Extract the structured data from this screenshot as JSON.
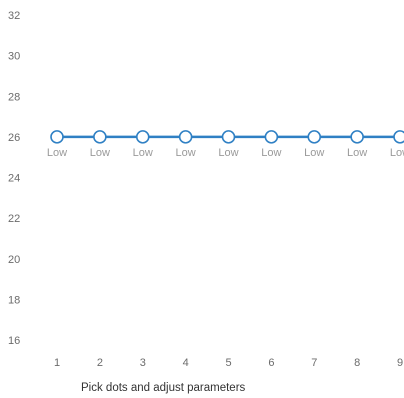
{
  "chart_data": {
    "type": "line",
    "x": [
      1,
      2,
      3,
      4,
      5,
      6,
      7,
      8,
      9
    ],
    "y": [
      26,
      26,
      26,
      26,
      26,
      26,
      26,
      26,
      26
    ],
    "point_labels": [
      "Low",
      "Low",
      "Low",
      "Low",
      "Low",
      "Low",
      "Low",
      "Low",
      "Low"
    ],
    "yticks": [
      32,
      30,
      28,
      26,
      24,
      22,
      20,
      18,
      16
    ],
    "xticks": [
      1,
      2,
      3,
      4,
      5,
      6,
      7,
      8,
      9
    ],
    "ylim": [
      16,
      32
    ],
    "xlim": [
      1,
      9
    ],
    "grid": false,
    "line_color": "#2f80c4",
    "marker_fill": "#ffffff",
    "title": "",
    "xlabel": "",
    "ylabel": ""
  },
  "hint_text": "Pick dots and adjust parameters"
}
